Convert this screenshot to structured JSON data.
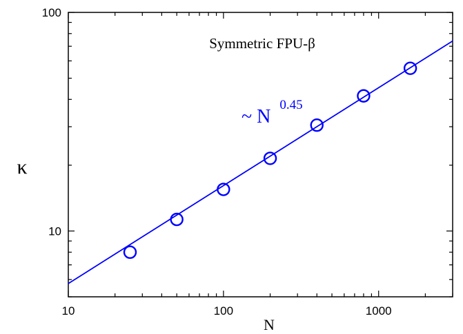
{
  "chart_data": {
    "type": "scatter",
    "title": "",
    "xlabel": "N",
    "ylabel": "κ",
    "x_scale": "log",
    "y_scale": "log",
    "xlim": [
      10,
      3000
    ],
    "ylim": [
      5,
      100
    ],
    "x_tick_values": [
      10,
      100,
      1000
    ],
    "x_tick_labels": [
      "10",
      "100",
      "1000"
    ],
    "y_tick_values": [
      10,
      100
    ],
    "y_tick_labels": [
      "10",
      "100"
    ],
    "grid": false,
    "colors": {
      "series": "#0000ff",
      "axes": "#000000"
    },
    "series": [
      {
        "kind": "points",
        "marker": "open-circle",
        "x": [
          25,
          50,
          100,
          200,
          400,
          800,
          1600
        ],
        "y": [
          8.0,
          11.3,
          15.5,
          21.5,
          30.5,
          41.5,
          55.5
        ]
      },
      {
        "kind": "fit-line",
        "exponent": 0.45,
        "x": [
          10,
          3000
        ],
        "y": [
          5.75,
          74.0
        ]
      }
    ],
    "annotations": [
      {
        "id": "model",
        "text": "Symmetric FPU-β"
      },
      {
        "id": "scaling",
        "prefix": "~ N",
        "exponent": "0.45"
      }
    ]
  }
}
